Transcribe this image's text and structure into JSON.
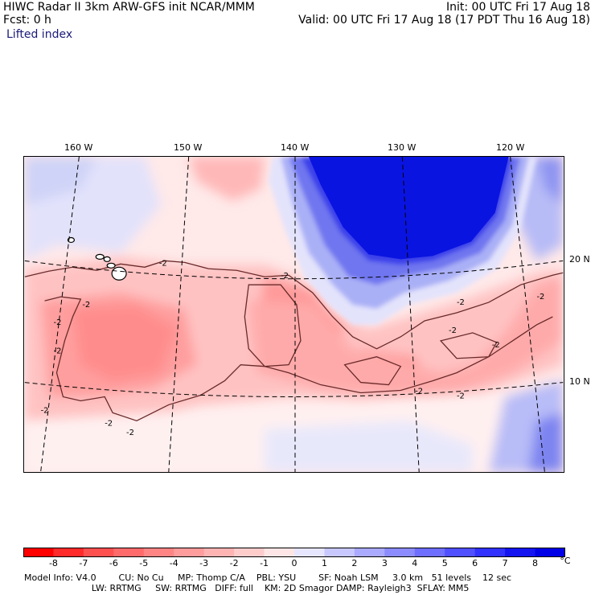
{
  "header": {
    "title_line": "HIWC Radar II 3km ARW-GFS init    NCAR/MMM",
    "fcst_line": "Fcst:    0 h",
    "init_line": "Init: 00 UTC Fri 17 Aug 18",
    "valid_line": "Valid: 00 UTC Fri 17 Aug 18 (17 PDT Thu 16 Aug 18)",
    "variable": "Lifted index"
  },
  "map": {
    "lon_labels": [
      "160 W",
      "150 W",
      "140 W",
      "130 W",
      "120 W"
    ],
    "lat_labels": [
      "20 N",
      "10 N"
    ],
    "contour_label": "-2"
  },
  "colorbar": {
    "levels": [
      "-8",
      "-7",
      "-6",
      "-5",
      "-4",
      "-3",
      "-2",
      "-1",
      "0",
      "1",
      "2",
      "3",
      "4",
      "5",
      "6",
      "7",
      "8"
    ],
    "unit": "°C",
    "colors": [
      "#ff0000",
      "#ff2a2a",
      "#ff5050",
      "#ff6b6b",
      "#ff8585",
      "#ff9c9c",
      "#ffb4b4",
      "#ffcccc",
      "#ffe6e6",
      "#e6e6ff",
      "#c8c8ff",
      "#aaaaff",
      "#8c8cff",
      "#6e6eff",
      "#5050ff",
      "#3232ff",
      "#1414f0",
      "#0000e6"
    ]
  },
  "footer": {
    "line1": "Model Info: V4.0        CU: No Cu     MP: Thomp C/A    PBL: YSU        SF: Noah LSM     3.0 km   51 levels    12 sec",
    "line2": "                        LW: RRTMG     SW: RRTMG   DIFF: full    KM: 2D Smagor DAMP: Rayleigh3  SFLAY: MM5"
  }
}
